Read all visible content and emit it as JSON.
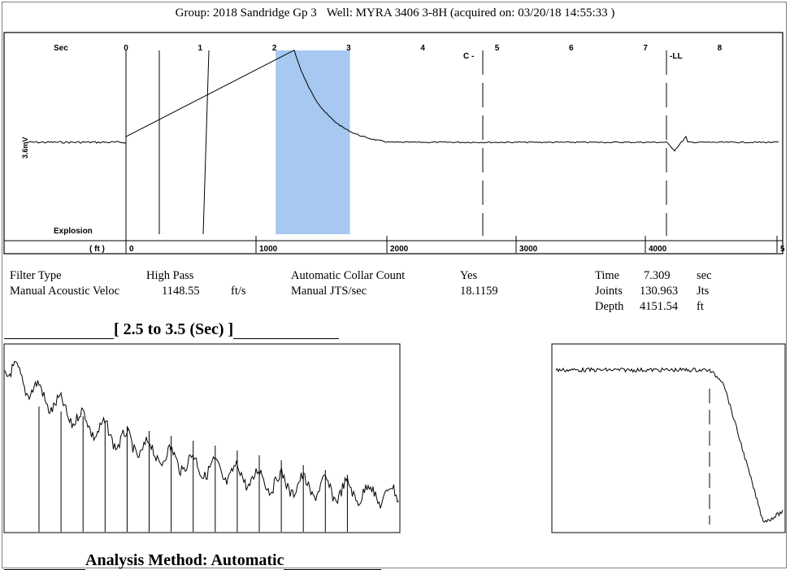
{
  "header": {
    "group": "Group: 2018 Sandridge Gp 3",
    "well": "Well: MYRA 3406 3-8H (acquired on: 03/20/18 14:55:33 )"
  },
  "main_trace": {
    "sec_label": "Sec",
    "ft_label": "( ft )",
    "mv_label": "3.6mV",
    "explosion_label": "Explosion",
    "sec_ticks": [
      "0",
      "1",
      "2",
      "3",
      "4",
      "5",
      "6",
      "7",
      "8"
    ],
    "ft_ticks": [
      "0",
      "1000",
      "2000",
      "3000",
      "4000",
      "5"
    ],
    "markers": [
      {
        "label": "C",
        "sec": 4.8
      },
      {
        "label": "LL",
        "sec": 7.309
      }
    ],
    "highlight_sec": [
      2.5,
      3.5
    ]
  },
  "info": {
    "filter_type_label": "Filter Type",
    "filter_type_value": "High Pass",
    "collar_label": "Automatic Collar Count",
    "collar_value": "Yes",
    "time_label": "Time",
    "time_value": "7.309",
    "time_unit": "sec",
    "acoustic_label": "Manual Acoustic Veloc",
    "acoustic_value": "1148.55",
    "acoustic_unit": "ft/s",
    "jts_label": "Manual JTS/sec",
    "jts_value": "18.1159",
    "joints_label": "Joints",
    "joints_value": "130.963",
    "joints_unit": "Jts",
    "depth_label": "Depth",
    "depth_value": "4151.54",
    "depth_unit": "ft"
  },
  "zoom_title": "[ 2.5  to  3.5 (Sec) ]",
  "analysis": "Analysis Method:   Automatic",
  "chart_data": [
    {
      "type": "line",
      "title": "",
      "xlabel": "Sec",
      "x_ticks_sec": [
        0,
        1,
        2,
        3,
        4,
        5,
        6,
        7,
        8
      ],
      "x_ticks_ft": [
        0,
        1000,
        2000,
        3000,
        4000
      ],
      "xlim": [
        0,
        8.9
      ],
      "highlight": [
        2.5,
        3.5
      ],
      "markers": [
        {
          "name": "C",
          "x": 4.8
        },
        {
          "name": "LL",
          "x": 7.309
        }
      ],
      "series": [
        {
          "values_description_points": [
            [
              0,
              0
            ],
            [
              2.3,
              0.95
            ],
            [
              2.6,
              0.6
            ],
            [
              3.0,
              0.3
            ],
            [
              3.5,
              0.1
            ],
            [
              4.0,
              0.04
            ],
            [
              5,
              0.01
            ],
            [
              7.2,
              0
            ],
            [
              7.309,
              -0.12
            ],
            [
              7.5,
              0.05
            ],
            [
              8.9,
              0
            ]
          ]
        }
      ]
    },
    {
      "type": "line",
      "title": "[ 2.5  to  3.5 (Sec) ]",
      "collar_count_lines": 15,
      "trend": [
        [
          0,
          0.9
        ],
        [
          0.25,
          0.65
        ],
        [
          0.5,
          0.45
        ],
        [
          0.75,
          0.35
        ],
        [
          1.0,
          0.28
        ]
      ]
    },
    {
      "type": "line",
      "marker_x": 0.7,
      "trend": [
        [
          0,
          0.9
        ],
        [
          0.7,
          0.9
        ],
        [
          0.85,
          0.55
        ],
        [
          0.93,
          0.1
        ],
        [
          1.0,
          0.08
        ]
      ]
    }
  ]
}
